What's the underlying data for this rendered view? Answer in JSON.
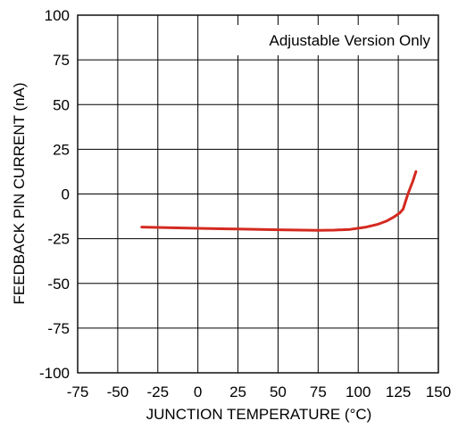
{
  "chart_data": {
    "type": "line",
    "title": "",
    "xlabel": "JUNCTION TEMPERATURE (°C)",
    "ylabel": "FEEDBACK PIN CURRENT (nA)",
    "annotation": "Adjustable Version Only",
    "xlim": [
      -75,
      150
    ],
    "ylim": [
      -100,
      100
    ],
    "x_ticks": [
      -75,
      -50,
      -25,
      0,
      25,
      50,
      75,
      100,
      125,
      150
    ],
    "x_tick_labels": [
      "-75",
      "-50",
      "-25",
      "0",
      "25",
      "50",
      "75",
      "100",
      "125",
      "150"
    ],
    "y_ticks": [
      100,
      75,
      50,
      25,
      0,
      -25,
      -50,
      -75,
      -100
    ],
    "y_tick_labels": [
      "100",
      "75",
      "50",
      "25",
      "0",
      "-25",
      "-50",
      "-75",
      "-100"
    ],
    "grid": true,
    "line_color": "#d42a20",
    "series": [
      {
        "x": [
          -35,
          -25,
          0,
          25,
          50,
          65,
          75,
          85,
          95,
          105,
          112,
          118,
          122,
          126,
          128,
          131,
          134,
          136
        ],
        "y": [
          -18.5,
          -18.7,
          -19.2,
          -19.6,
          -20.0,
          -20.2,
          -20.3,
          -20.2,
          -19.8,
          -18.5,
          -17.0,
          -15.0,
          -13.0,
          -10.5,
          -8.5,
          0,
          7,
          12.5
        ]
      }
    ]
  }
}
